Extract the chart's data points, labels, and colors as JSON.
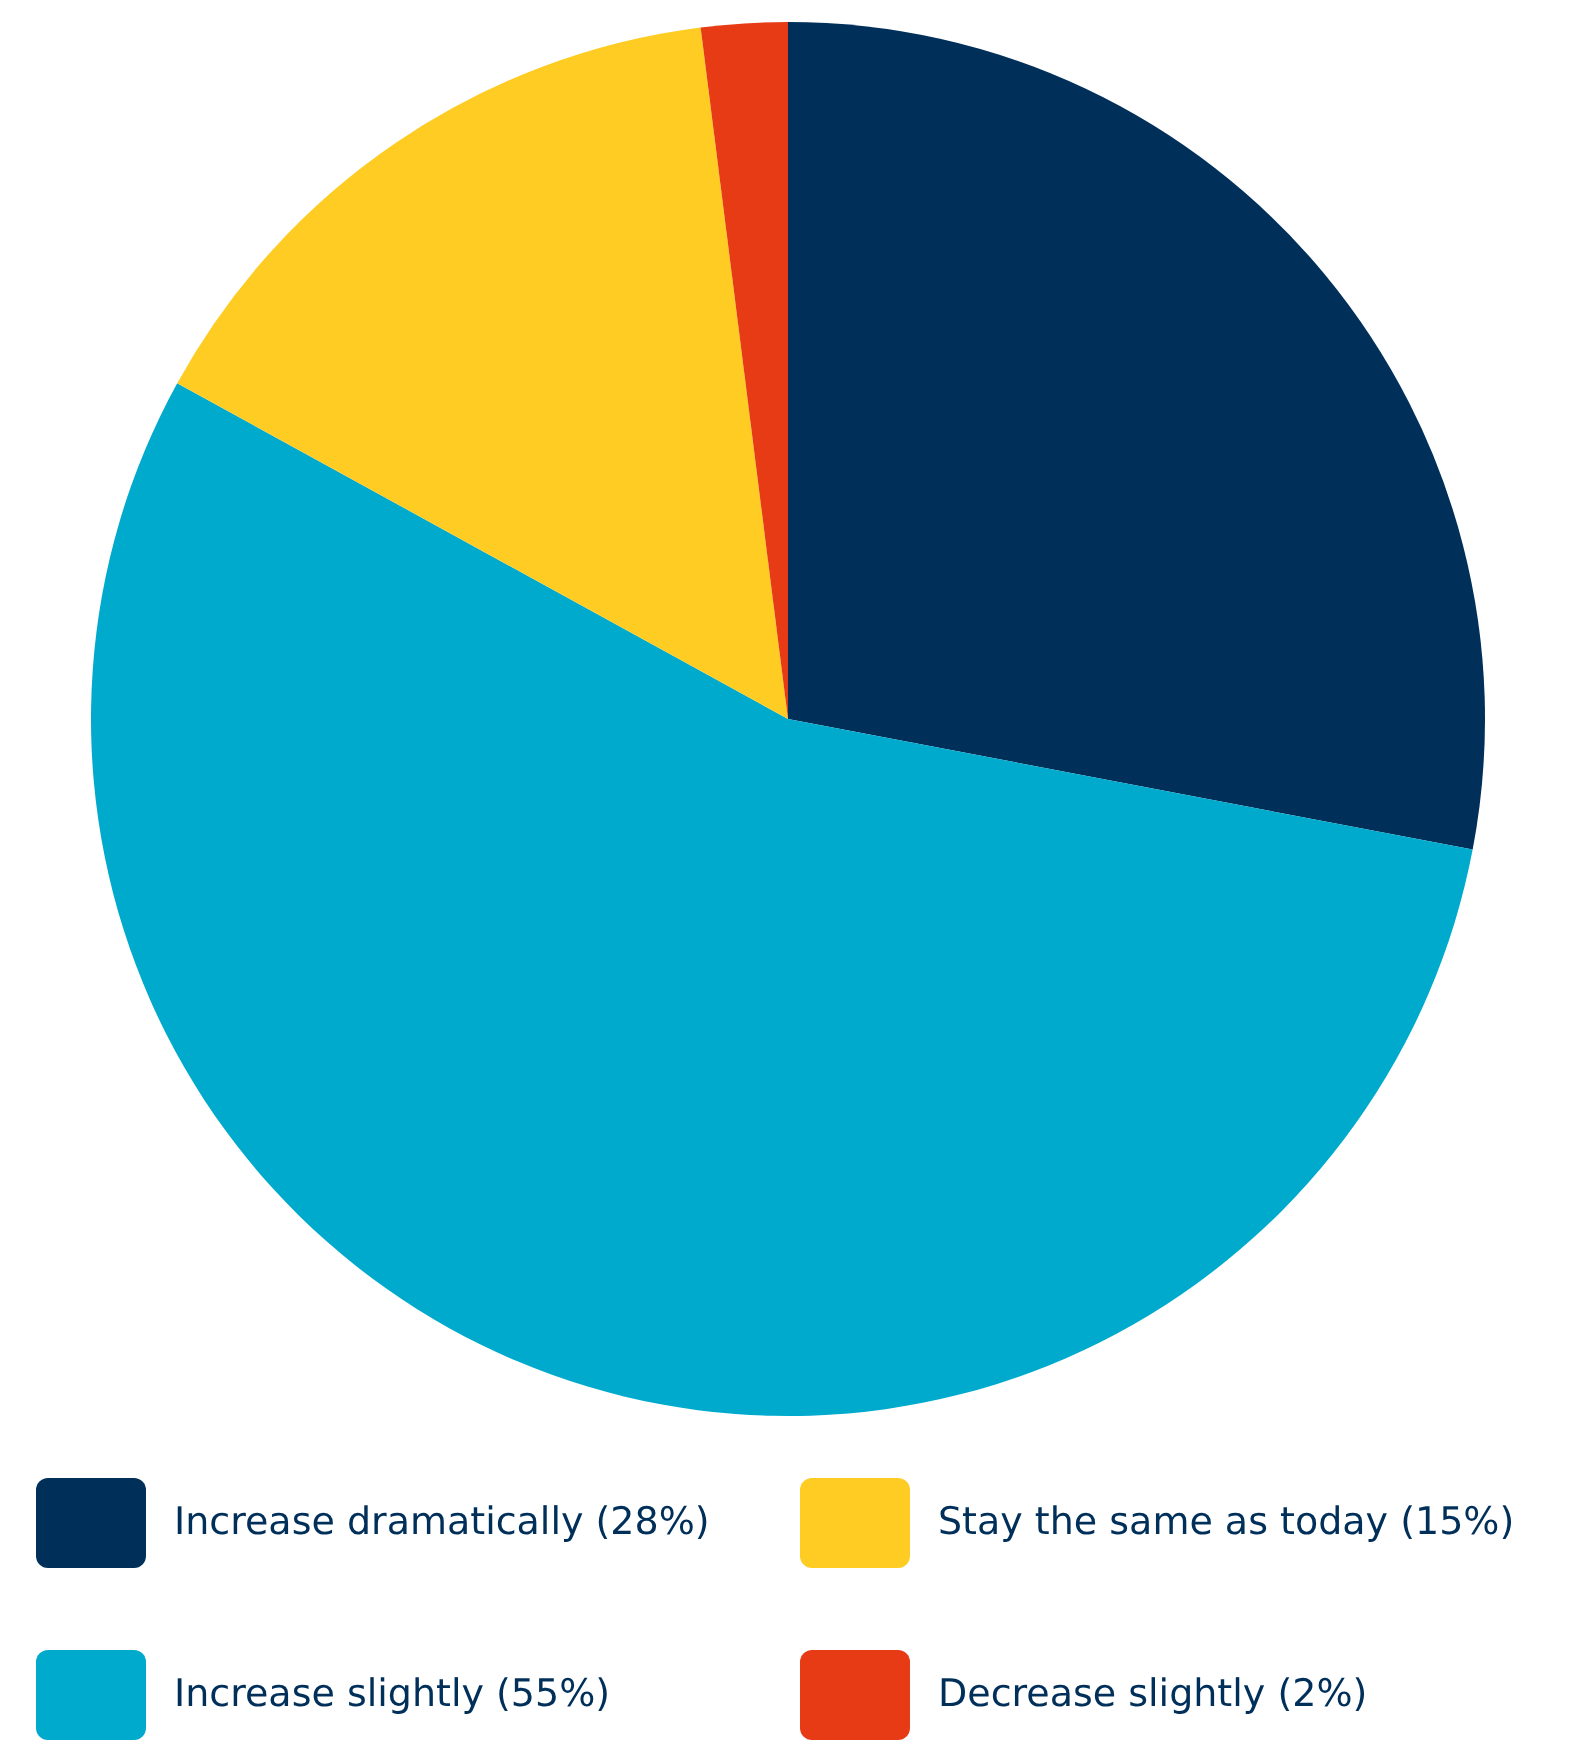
{
  "chart_data": {
    "type": "pie",
    "categories": [
      "Increase dramatically (28%)",
      "Increase slightly (55%)",
      "Stay the same as today (15%)",
      "Decrease slightly (2%)"
    ],
    "values": [
      28,
      55,
      15,
      2
    ],
    "colors": [
      "#002f5a",
      "#00aacc",
      "#fecc22",
      "#e63b14"
    ],
    "legend": "bottom"
  }
}
